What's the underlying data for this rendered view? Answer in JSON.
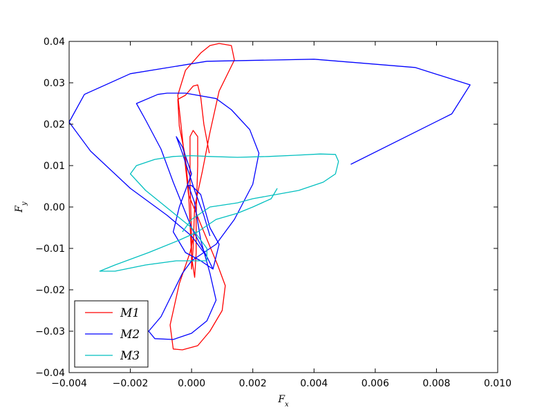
{
  "chart_data": {
    "type": "line",
    "xlabel": "F_x",
    "ylabel": "F_y",
    "xlim": [
      -0.004,
      0.01
    ],
    "ylim": [
      -0.04,
      0.04
    ],
    "x_ticks": [
      -0.004,
      -0.002,
      0.0,
      0.002,
      0.004,
      0.006,
      0.008,
      0.01
    ],
    "x_tick_labels": [
      "−0.004",
      "−0.002",
      "0.000",
      "0.002",
      "0.004",
      "0.006",
      "0.008",
      "0.010"
    ],
    "y_ticks": [
      -0.04,
      -0.03,
      -0.02,
      -0.01,
      0.0,
      0.01,
      0.02,
      0.03,
      0.04
    ],
    "y_tick_labels": [
      "−0.04",
      "−0.03",
      "−0.02",
      "−0.01",
      "0.00",
      "0.01",
      "0.02",
      "0.03",
      "0.04"
    ],
    "grid": false,
    "legend_position": "lower-left",
    "series": [
      {
        "name": "M1",
        "color": "#ff0000",
        "points": [
          [
            0.00058,
            0.013
          ],
          [
            0.0004,
            0.02
          ],
          [
            0.0003,
            0.0265
          ],
          [
            0.0002,
            0.0295
          ],
          [
            5e-05,
            0.0292
          ],
          [
            -0.0002,
            0.027
          ],
          [
            -0.00045,
            0.026
          ],
          [
            -0.0004,
            0.0195
          ],
          [
            -0.0002,
            0.012
          ],
          [
            -0.0001,
            0.004
          ],
          [
            -5e-05,
            -0.004
          ],
          [
            0.0,
            -0.012
          ],
          [
            0.0001,
            -0.017
          ],
          [
            0.00015,
            -0.011
          ],
          [
            0.00015,
            -0.002
          ],
          [
            0.0002,
            0.01
          ],
          [
            0.0002,
            0.017
          ],
          [
            5e-05,
            0.0185
          ],
          [
            -5e-05,
            0.017
          ],
          [
            -5e-05,
            0.006
          ],
          [
            0.0,
            -0.007
          ],
          [
            0.0,
            -0.015
          ],
          [
            5e-05,
            -0.01
          ],
          [
            0.0001,
            0.0
          ],
          [
            0.00035,
            0.0085
          ],
          [
            0.0006,
            0.018
          ],
          [
            0.0009,
            0.028
          ],
          [
            0.0014,
            0.0355
          ],
          [
            0.0013,
            0.039
          ],
          [
            0.0009,
            0.0395
          ],
          [
            0.0006,
            0.039
          ],
          [
            0.0003,
            0.0372
          ],
          [
            -0.0002,
            0.033
          ],
          [
            -0.00045,
            0.027
          ],
          [
            -0.0001,
            0.003
          ],
          [
            0.0004,
            -0.006
          ],
          [
            0.00085,
            -0.014
          ],
          [
            0.0011,
            -0.019
          ],
          [
            0.001,
            -0.025
          ],
          [
            0.0006,
            -0.03
          ],
          [
            0.0002,
            -0.0335
          ],
          [
            -0.0003,
            -0.0345
          ],
          [
            -0.0006,
            -0.0343
          ],
          [
            -0.0007,
            -0.0285
          ],
          [
            -0.0004,
            -0.0185
          ],
          [
            -5e-05,
            -0.011
          ],
          [
            0.0001,
            -0.006
          ]
        ]
      },
      {
        "name": "M2",
        "color": "#0000ff",
        "points": [
          [
            0.0052,
            0.0103
          ],
          [
            0.0085,
            0.0225
          ],
          [
            0.0091,
            0.0295
          ],
          [
            0.0073,
            0.0337
          ],
          [
            0.004,
            0.0357
          ],
          [
            0.0005,
            0.0352
          ],
          [
            -0.002,
            0.0322
          ],
          [
            -0.0035,
            0.0272
          ],
          [
            -0.004,
            0.0205
          ],
          [
            -0.0033,
            0.0135
          ],
          [
            -0.002,
            0.0045
          ],
          [
            -0.0008,
            -0.002
          ],
          [
            0.0,
            -0.007
          ],
          [
            0.0005,
            -0.012
          ],
          [
            0.0007,
            -0.015
          ],
          [
            0.0005,
            -0.012
          ],
          [
            0.0,
            -0.005
          ],
          [
            -0.0006,
            0.006
          ],
          [
            -0.001,
            0.014
          ],
          [
            -0.0015,
            0.021
          ],
          [
            -0.0018,
            0.025
          ],
          [
            -0.0011,
            0.0272
          ],
          [
            -0.0008,
            0.0275
          ],
          [
            -0.0002,
            0.0275
          ],
          [
            0.0008,
            0.0262
          ],
          [
            0.0013,
            0.0235
          ],
          [
            0.0019,
            0.0187
          ],
          [
            0.0022,
            0.013
          ],
          [
            0.002,
            0.0055
          ],
          [
            0.0014,
            -0.003
          ],
          [
            0.0008,
            -0.009
          ],
          [
            0.0,
            -0.013
          ],
          [
            -0.0003,
            -0.016
          ],
          [
            -0.001,
            -0.0265
          ],
          [
            -0.0014,
            -0.03
          ],
          [
            -0.0012,
            -0.0318
          ],
          [
            -0.0006,
            -0.032
          ],
          [
            0.0,
            -0.0305
          ],
          [
            0.0005,
            -0.0275
          ],
          [
            0.0008,
            -0.0225
          ],
          [
            0.0006,
            -0.016
          ],
          [
            0.0003,
            -0.008
          ],
          [
            0.0001,
            0.001
          ],
          [
            -0.0001,
            0.0052
          ],
          [
            0.0,
            0.0052
          ],
          [
            0.0003,
            0.003
          ],
          [
            0.0006,
            -0.005
          ],
          [
            0.0009,
            -0.009
          ],
          [
            0.0007,
            -0.015
          ],
          [
            0.0003,
            -0.013
          ],
          [
            -0.0002,
            -0.011
          ],
          [
            -0.0006,
            -0.006
          ],
          [
            -0.0004,
            0.0
          ],
          [
            0.0,
            0.008
          ],
          [
            -0.0003,
            0.0145
          ],
          [
            -0.0005,
            0.017
          ],
          [
            -0.0003,
            0.013
          ],
          [
            0.0001,
            0.004
          ],
          [
            0.0004,
            -0.002
          ],
          [
            0.0006,
            -0.007
          ]
        ]
      },
      {
        "name": "M3",
        "color": "#00bfbf",
        "points": [
          [
            0.0028,
            0.0045
          ],
          [
            0.0026,
            0.002
          ],
          [
            0.002,
            0.0
          ],
          [
            0.0015,
            -0.0015
          ],
          [
            0.0008,
            -0.003
          ],
          [
            0.0002,
            -0.006
          ],
          [
            -0.0004,
            -0.008
          ],
          [
            -0.0014,
            -0.011
          ],
          [
            -0.0025,
            -0.014
          ],
          [
            -0.003,
            -0.0155
          ],
          [
            -0.0025,
            -0.0155
          ],
          [
            -0.0015,
            -0.014
          ],
          [
            -0.0005,
            -0.013
          ],
          [
            0.0005,
            -0.013
          ],
          [
            0.0005,
            -0.01
          ],
          [
            0.0,
            -0.005
          ],
          [
            -0.0005,
            -0.002
          ],
          [
            -0.001,
            0.001
          ],
          [
            -0.0015,
            0.004
          ],
          [
            -0.002,
            0.008
          ],
          [
            -0.0018,
            0.01
          ],
          [
            -0.0012,
            0.0115
          ],
          [
            -0.0006,
            0.0122
          ],
          [
            0.0,
            0.0124
          ],
          [
            0.0006,
            0.0122
          ],
          [
            0.0015,
            0.012
          ],
          [
            0.0025,
            0.0122
          ],
          [
            0.0034,
            0.0125
          ],
          [
            0.0042,
            0.0128
          ],
          [
            0.0047,
            0.0127
          ],
          [
            0.0048,
            0.011
          ],
          [
            0.0047,
            0.008
          ],
          [
            0.0043,
            0.006
          ],
          [
            0.0035,
            0.004
          ],
          [
            0.002,
            0.002
          ],
          [
            0.0015,
            0.001
          ],
          [
            0.0006,
            0.0
          ],
          [
            0.0,
            -0.003
          ],
          [
            -0.0003,
            -0.006
          ]
        ]
      }
    ]
  }
}
